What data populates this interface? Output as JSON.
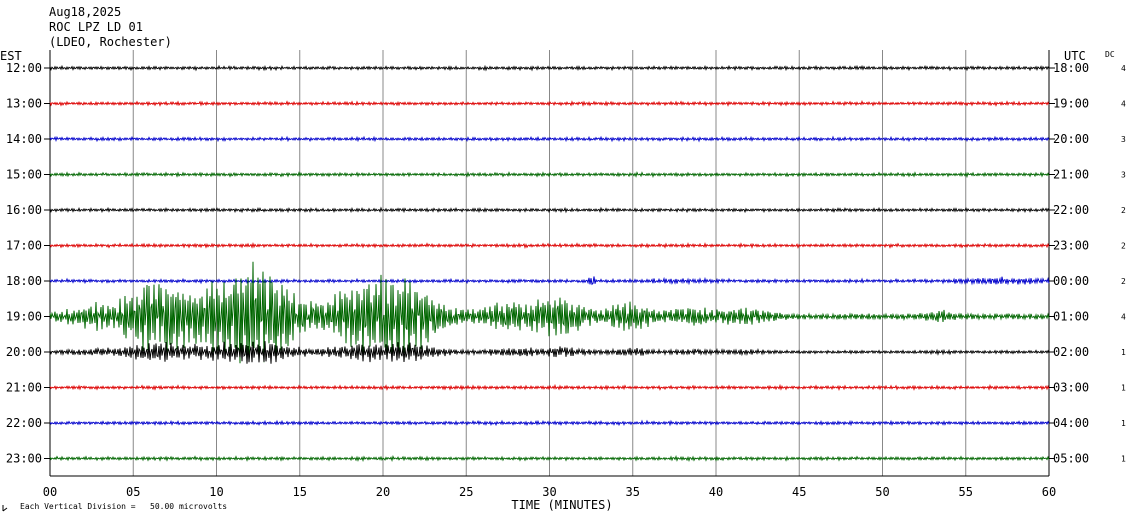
{
  "header": {
    "date": "Aug18,2025",
    "station": "ROC LPZ LD 01",
    "location": "(LDEO, Rochester)"
  },
  "left_axis_title": "EST",
  "right_axis_title": "UTC",
  "dc_title": "DC",
  "colors": {
    "black": "#000000",
    "red": "#dd0000",
    "blue": "#0000cc",
    "green": "#006600",
    "grid": "#888888",
    "background": "#ffffff"
  },
  "chart_data": {
    "type": "line",
    "title": "",
    "xlabel": "TIME (MINUTES)",
    "ylabel": "",
    "xlim": [
      0,
      60
    ],
    "x_ticks": [
      "00",
      "05",
      "10",
      "15",
      "20",
      "25",
      "30",
      "35",
      "40",
      "45",
      "50",
      "55",
      "60"
    ],
    "grid": true,
    "rows": [
      {
        "est": "12:00",
        "utc": "18:00",
        "dc": "4",
        "color": "black"
      },
      {
        "est": "13:00",
        "utc": "19:00",
        "dc": "4",
        "color": "red"
      },
      {
        "est": "14:00",
        "utc": "20:00",
        "dc": "3",
        "color": "blue"
      },
      {
        "est": "15:00",
        "utc": "21:00",
        "dc": "3",
        "color": "green"
      },
      {
        "est": "16:00",
        "utc": "22:00",
        "dc": "2",
        "color": "black"
      },
      {
        "est": "17:00",
        "utc": "23:00",
        "dc": "2",
        "color": "red"
      },
      {
        "est": "18:00",
        "utc": "00:00",
        "dc": "2",
        "color": "blue"
      },
      {
        "est": "19:00",
        "utc": "01:00",
        "dc": "4",
        "color": "green"
      },
      {
        "est": "20:00",
        "utc": "02:00",
        "dc": "1",
        "color": "black"
      },
      {
        "est": "21:00",
        "utc": "03:00",
        "dc": "1",
        "color": "red"
      },
      {
        "est": "22:00",
        "utc": "04:00",
        "dc": "1",
        "color": "blue"
      },
      {
        "est": "23:00",
        "utc": "05:00",
        "dc": "1",
        "color": "green"
      }
    ]
  },
  "footer": {
    "scale_note": "Each Vertical Division =   50.00 microvolts"
  }
}
